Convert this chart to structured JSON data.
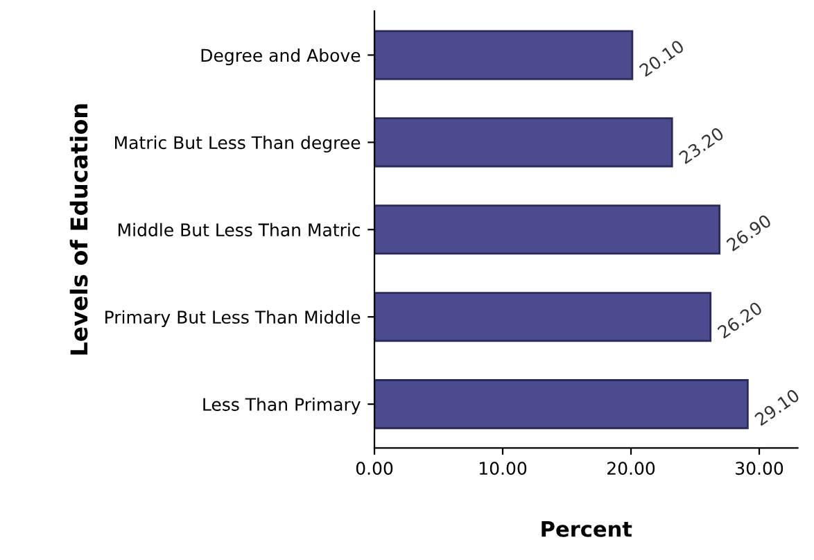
{
  "chart_data": {
    "type": "bar",
    "orientation": "horizontal",
    "xlabel": "Percent",
    "ylabel": "Levels of Education",
    "categories": [
      "Degree and Above",
      "Matric But Less Than degree",
      "Middle But Less Than Matric",
      "Primary But Less Than Middle",
      "Less Than Primary"
    ],
    "values": [
      20.1,
      23.2,
      26.9,
      26.2,
      29.1
    ],
    "value_labels": [
      "20.10",
      "23.20",
      "26.90",
      "26.20",
      "29.10"
    ],
    "color": "#4b4b8f",
    "xlim": [
      0,
      33
    ],
    "xticks": [
      {
        "value": 0,
        "label": "0.00"
      },
      {
        "value": 10,
        "label": "10.00"
      },
      {
        "value": 20,
        "label": "20.00"
      },
      {
        "value": 30,
        "label": "30.00"
      }
    ],
    "grid": false,
    "legend": false
  }
}
